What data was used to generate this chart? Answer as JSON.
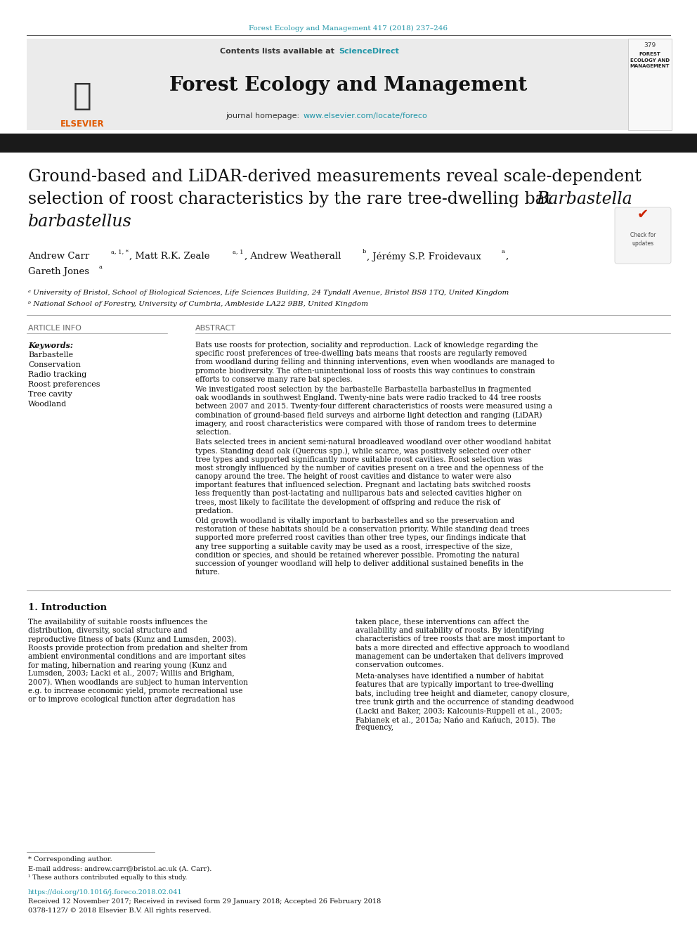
{
  "journal_ref": "Forest Ecology and Management 417 (2018) 237–246",
  "contents_text": "Contents lists available at ",
  "sciencedirect_text": "ScienceDirect",
  "journal_name": "Forest Ecology and Management",
  "journal_homepage_text": "journal homepage: ",
  "journal_url": "www.elsevier.com/locate/foreco",
  "title_line1": "Ground-based and LiDAR-derived measurements reveal scale-dependent",
  "title_line2": "selection of roost characteristics by the rare tree-dwelling bat ",
  "title_line3_italic": "Barbastella",
  "title_line4_italic": "barbastellus",
  "affil_a": "ᵃ University of Bristol, School of Biological Sciences, Life Sciences Building, 24 Tyndall Avenue, Bristol BS8 1TQ, United Kingdom",
  "affil_b": "ᵇ National School of Forestry, University of Cumbria, Ambleside LA22 9BB, United Kingdom",
  "article_info_header": "ARTICLE INFO",
  "keywords_label": "Keywords:",
  "keywords": [
    "Barbastelle",
    "Conservation",
    "Radio tracking",
    "Roost preferences",
    "Tree cavity",
    "Woodland"
  ],
  "abstract_header": "ABSTRACT",
  "abstract_p1": "Bats use roosts for protection, sociality and reproduction. Lack of knowledge regarding the specific roost preferences of tree-dwelling bats means that roosts are regularly removed from woodland during felling and thinning interventions, even when woodlands are managed to promote biodiversity. The often-unintentional loss of roosts this way continues to constrain efforts to conserve many rare bat species.",
  "abstract_p2": "We investigated roost selection by the barbastelle Barbastella barbastellus in fragmented oak woodlands in southwest England. Twenty-nine bats were radio tracked to 44 tree roosts between 2007 and 2015. Twenty-four different characteristics of roosts were measured using a combination of ground-based field surveys and airborne light detection and ranging (LiDAR) imagery, and roost characteristics were compared with those of random trees to determine selection.",
  "abstract_p3": "Bats selected trees in ancient semi-natural broadleaved woodland over other woodland habitat types. Standing dead oak (Quercus spp.), while scarce, was positively selected over other tree types and supported significantly more suitable roost cavities. Roost selection was most strongly influenced by the number of cavities present on a tree and the openness of the canopy around the tree. The height of roost cavities and distance to water were also important features that influenced selection. Pregnant and lactating bats switched roosts less frequently than post-lactating and nulliparous bats and selected cavities higher on trees, most likely to facilitate the development of offspring and reduce the risk of predation.",
  "abstract_p4": "Old growth woodland is vitally important to barbastelles and so the preservation and restoration of these habitats should be a conservation priority. While standing dead trees supported more preferred roost cavities than other tree types, our findings indicate that any tree supporting a suitable cavity may be used as a roost, irrespective of the size, condition or species, and should be retained wherever possible. Promoting the natural succession of younger woodland will help to deliver additional sustained benefits in the future.",
  "intro_header": "1. Introduction",
  "intro_col1_p1": "The availability of suitable roosts influences the distribution, diversity, social structure and reproductive fitness of bats (Kunz and Lumsden, 2003). Roosts provide protection from predation and shelter from ambient environmental conditions and are important sites for mating, hibernation and rearing young (Kunz and Lumsden, 2003; Lacki et al., 2007; Willis and Brigham, 2007). When woodlands are subject to human intervention e.g. to increase economic yield, promote recreational use or to improve ecological function after degradation has",
  "intro_col2_p1": "taken place, these interventions can affect the availability and suitability of roosts. By identifying characteristics of tree roosts that are most important to bats a more directed and effective approach to woodland management can be undertaken that delivers improved conservation outcomes.",
  "intro_col2_p2": "Meta-analyses have identified a number of habitat features that are typically important to tree-dwelling bats, including tree height and diameter, canopy closure, tree trunk girth and the occurrence of standing deadwood (Lacki and Baker, 2003; Kalcounis-Ruppell et al., 2005; Fabianek et al., 2015a; Nańo and Kańuch, 2015). The frequency,",
  "footnote_star": "* Corresponding author.",
  "footnote_email": "E-mail address: andrew.carr@bristol.ac.uk (A. Carr).",
  "footnote_1": "¹ These authors contributed equally to this study.",
  "doi": "https://doi.org/10.1016/j.foreco.2018.02.041",
  "received": "Received 12 November 2017; Received in revised form 29 January 2018; Accepted 26 February 2018",
  "copyright": "0378-1127/ © 2018 Elsevier B.V. All rights reserved.",
  "bg_color": "#ffffff",
  "link_color": "#2196a8",
  "black_bar_color": "#1a1a1a",
  "text_color": "#111111"
}
